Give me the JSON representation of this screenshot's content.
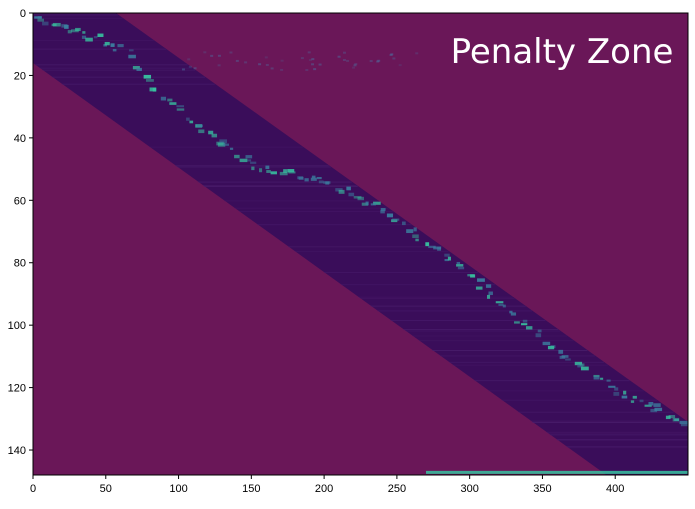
{
  "chart_data": {
    "type": "heatmap",
    "annotation": "Penalty Zone",
    "x_ticks": [
      0,
      50,
      100,
      150,
      200,
      250,
      300,
      350,
      400
    ],
    "y_ticks": [
      0,
      20,
      40,
      60,
      80,
      100,
      120,
      140
    ],
    "xlim": [
      0,
      450
    ],
    "ylim": [
      148,
      0
    ],
    "band": {
      "upper_start": [
        57,
        0
      ],
      "upper_end": [
        450,
        131
      ],
      "lower_start": [
        0,
        16
      ],
      "lower_end": [
        394,
        148
      ]
    },
    "bright_path": [
      [
        0,
        0
      ],
      [
        20,
        4
      ],
      [
        60,
        11
      ],
      [
        90,
        28
      ],
      [
        115,
        38
      ],
      [
        150,
        48
      ],
      [
        200,
        54
      ],
      [
        240,
        63
      ],
      [
        265,
        72
      ],
      [
        300,
        84
      ],
      [
        350,
        105
      ],
      [
        400,
        121
      ],
      [
        450,
        132
      ]
    ],
    "bottom_line": {
      "x_start": 270,
      "x_end": 450,
      "y": 147
    },
    "colors": {
      "penalty": "#6a1758",
      "band": "#3a0d5a",
      "bright_low": "#3b7fa0",
      "bright_high": "#37c3a0",
      "axis": "#000000",
      "annotation": "#ffffff"
    }
  }
}
